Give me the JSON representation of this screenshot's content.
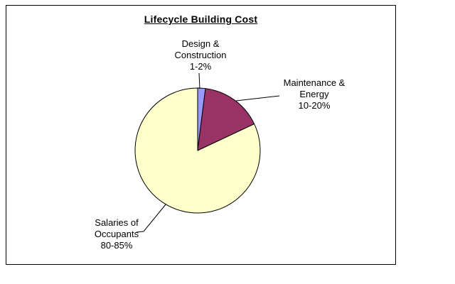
{
  "chart_data": {
    "type": "pie",
    "title": "Lifecycle Building Cost",
    "legend": "none",
    "start_angle_deg": -90,
    "direction": "clockwise",
    "labels_as_callouts": true,
    "outline_color": "#000000",
    "background_color": "#ffffff",
    "slices": [
      {
        "name": "Design & Construction",
        "range_label": "1-2%",
        "value_pct": 2,
        "color": "#9999FF",
        "label_lines": [
          "Design &",
          "Construction",
          "1-2%"
        ]
      },
      {
        "name": "Maintenance & Energy",
        "range_label": "10-20%",
        "value_pct": 16,
        "color": "#993366",
        "label_lines": [
          "Maintenance &",
          "Energy",
          "10-20%"
        ]
      },
      {
        "name": "Salaries of Occupants",
        "range_label": "80-85%",
        "value_pct": 82,
        "color": "#FFFFCC",
        "label_lines": [
          "Salaries of",
          "Occupants",
          "80-85%"
        ]
      }
    ]
  }
}
